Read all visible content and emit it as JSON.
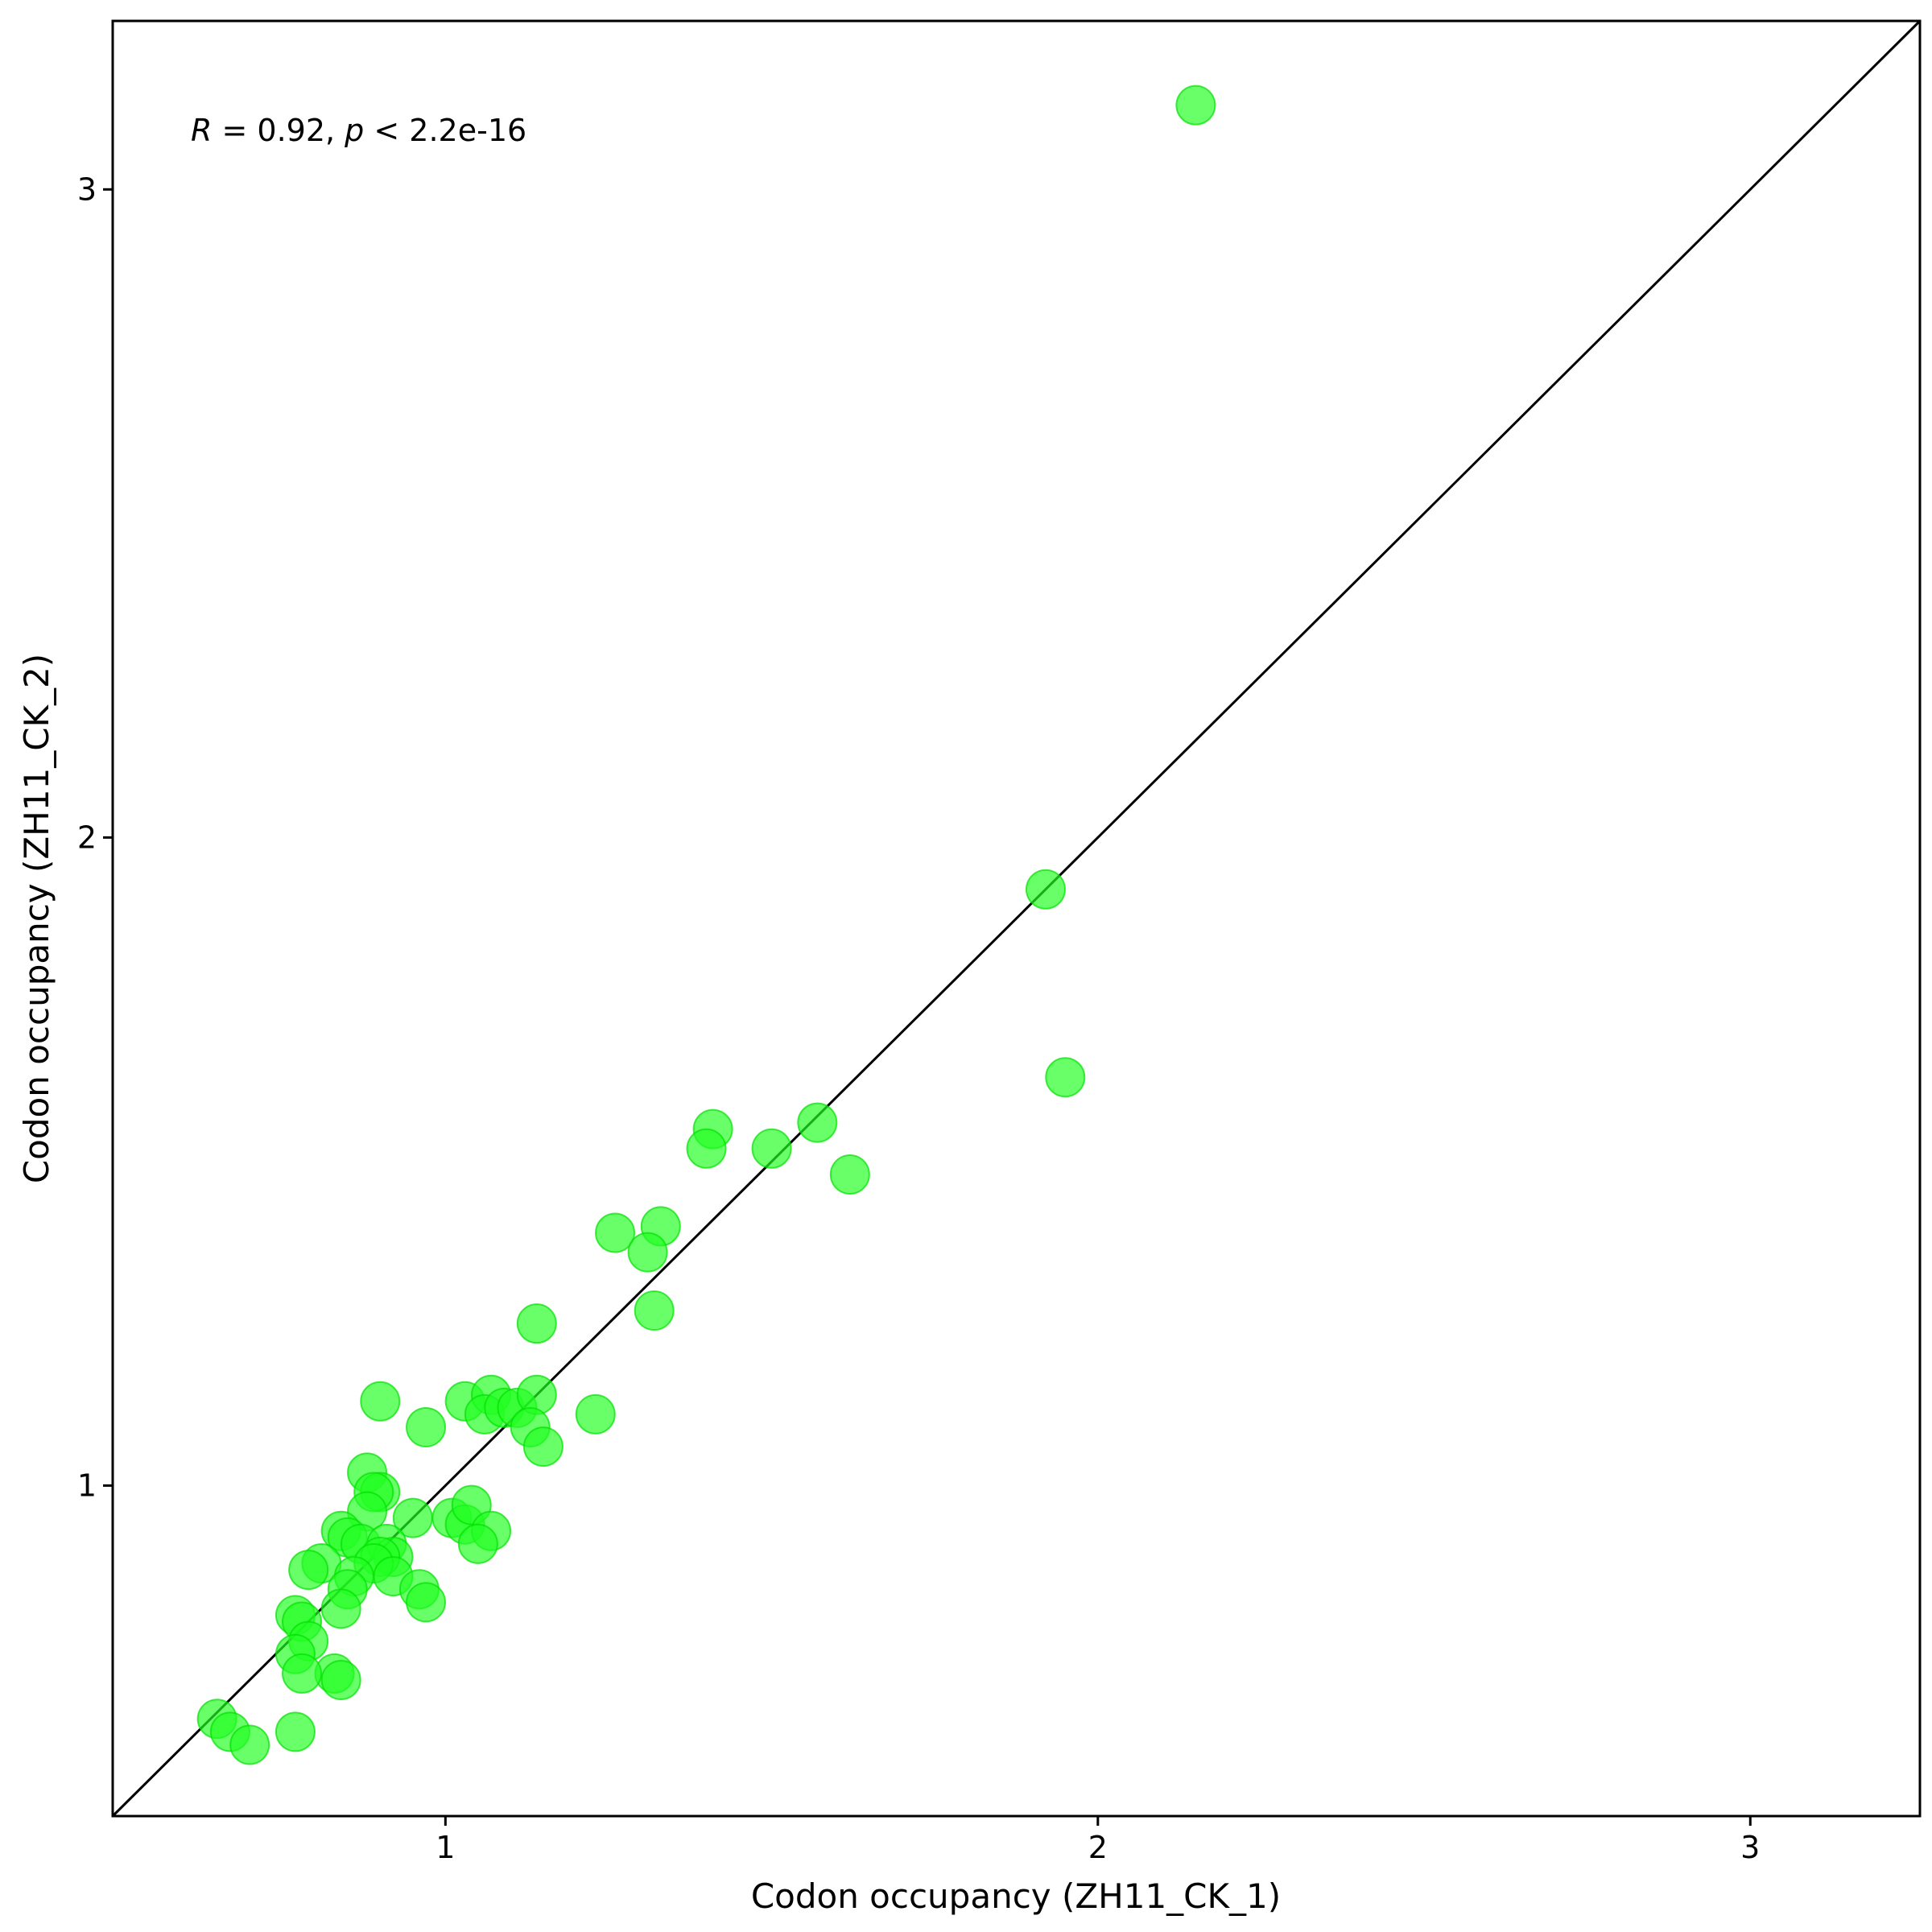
{
  "chart_data": {
    "type": "scatter",
    "xlabel": "Codon occupancy (ZH11_CK_1)",
    "ylabel": "Codon occupancy (ZH11_CK_2)",
    "annotation": {
      "r_symbol": "R",
      "r_text": " = 0.92, ",
      "p_symbol": "p",
      "p_text": " < 2.2e-16"
    },
    "xlim": [
      0.49,
      3.26
    ],
    "ylim": [
      0.49,
      3.26
    ],
    "x_ticks": [
      1,
      2,
      3
    ],
    "x_tick_labels": [
      "1",
      "2",
      "3"
    ],
    "y_ticks": [
      1,
      2,
      3
    ],
    "y_tick_labels": [
      "1",
      "2",
      "3"
    ],
    "grid": false,
    "reference_line": "y = x",
    "point_color": "#22ff22",
    "point_edge_color": "#00e000",
    "line_color": "#000000",
    "points": [
      [
        2.15,
        3.13
      ],
      [
        1.92,
        1.92
      ],
      [
        1.95,
        1.63
      ],
      [
        1.57,
        1.56
      ],
      [
        1.41,
        1.55
      ],
      [
        1.4,
        1.52
      ],
      [
        1.5,
        1.52
      ],
      [
        1.62,
        1.48
      ],
      [
        1.26,
        1.39
      ],
      [
        1.33,
        1.4
      ],
      [
        1.31,
        1.36
      ],
      [
        1.32,
        1.27
      ],
      [
        1.14,
        1.25
      ],
      [
        0.9,
        1.13
      ],
      [
        1.03,
        1.13
      ],
      [
        1.07,
        1.14
      ],
      [
        1.06,
        1.11
      ],
      [
        1.09,
        1.12
      ],
      [
        1.11,
        1.12
      ],
      [
        1.14,
        1.14
      ],
      [
        1.23,
        1.11
      ],
      [
        0.97,
        1.09
      ],
      [
        1.13,
        1.09
      ],
      [
        1.15,
        1.06
      ],
      [
        0.88,
        1.02
      ],
      [
        0.9,
        0.99
      ],
      [
        0.89,
        0.99
      ],
      [
        0.88,
        0.96
      ],
      [
        0.95,
        0.95
      ],
      [
        1.01,
        0.95
      ],
      [
        1.03,
        0.94
      ],
      [
        1.04,
        0.97
      ],
      [
        1.07,
        0.93
      ],
      [
        1.05,
        0.91
      ],
      [
        0.84,
        0.93
      ],
      [
        0.85,
        0.92
      ],
      [
        0.87,
        0.91
      ],
      [
        0.91,
        0.91
      ],
      [
        0.92,
        0.89
      ],
      [
        0.9,
        0.89
      ],
      [
        0.89,
        0.88
      ],
      [
        0.92,
        0.86
      ],
      [
        0.81,
        0.88
      ],
      [
        0.79,
        0.87
      ],
      [
        0.86,
        0.86
      ],
      [
        0.85,
        0.84
      ],
      [
        0.84,
        0.81
      ],
      [
        0.96,
        0.84
      ],
      [
        0.97,
        0.82
      ],
      [
        0.77,
        0.8
      ],
      [
        0.78,
        0.79
      ],
      [
        0.79,
        0.76
      ],
      [
        0.77,
        0.74
      ],
      [
        0.83,
        0.71
      ],
      [
        0.84,
        0.7
      ],
      [
        0.78,
        0.71
      ],
      [
        0.65,
        0.64
      ],
      [
        0.67,
        0.62
      ],
      [
        0.77,
        0.62
      ],
      [
        0.7,
        0.6
      ]
    ]
  }
}
